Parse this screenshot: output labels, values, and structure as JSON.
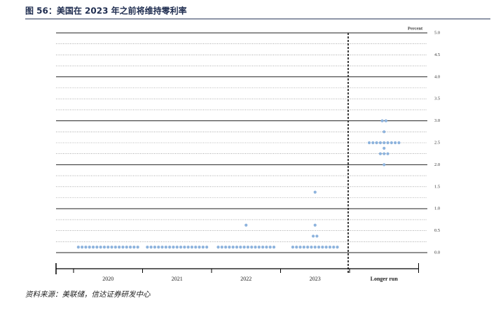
{
  "chart_data": {
    "type": "dot_plot",
    "title": "图 56：美国在 2023 年之前将维持零利率",
    "y_label": "Percent",
    "source": "资料来源：美联储，信达证券研发中心",
    "categories": [
      "2020",
      "2021",
      "2022",
      "2023",
      "Longer run"
    ],
    "color": "#8db3dd",
    "values": [
      [
        0.125,
        0.125,
        0.125,
        0.125,
        0.125,
        0.125,
        0.125,
        0.125,
        0.125,
        0.125,
        0.125,
        0.125,
        0.125,
        0.125,
        0.125,
        0.125,
        0.125
      ],
      [
        0.125,
        0.125,
        0.125,
        0.125,
        0.125,
        0.125,
        0.125,
        0.125,
        0.125,
        0.125,
        0.125,
        0.125,
        0.125,
        0.125,
        0.125,
        0.125,
        0.125
      ],
      [
        0.125,
        0.125,
        0.125,
        0.125,
        0.125,
        0.125,
        0.125,
        0.125,
        0.125,
        0.125,
        0.125,
        0.125,
        0.125,
        0.125,
        0.125,
        0.125,
        0.625
      ],
      [
        0.125,
        0.125,
        0.125,
        0.125,
        0.125,
        0.125,
        0.125,
        0.125,
        0.125,
        0.125,
        0.125,
        0.125,
        0.125,
        0.375,
        0.375,
        0.625,
        1.375
      ],
      [
        3.0,
        3.0,
        2.75,
        2.5,
        2.5,
        2.5,
        2.5,
        2.5,
        2.5,
        2.5,
        2.5,
        2.5,
        2.375,
        2.25,
        2.25,
        2.25,
        2.0
      ]
    ],
    "ylim": [
      0,
      5
    ],
    "yticks": [
      {
        "value": 0,
        "label": "0.0"
      },
      0.5,
      {
        "value": 1,
        "label": "1.0"
      },
      1.5,
      {
        "value": 2,
        "label": "2.0"
      },
      2.5,
      {
        "value": 3,
        "label": "3.0"
      },
      3.5,
      {
        "value": 4,
        "label": "4.0"
      },
      4.5,
      {
        "value": 5,
        "label": "5.0"
      }
    ],
    "minor_yticks": [
      0.25,
      0.75,
      1.25,
      1.75,
      2.25,
      2.75,
      3.25,
      3.75,
      4.25,
      4.75
    ],
    "grid": true
  }
}
